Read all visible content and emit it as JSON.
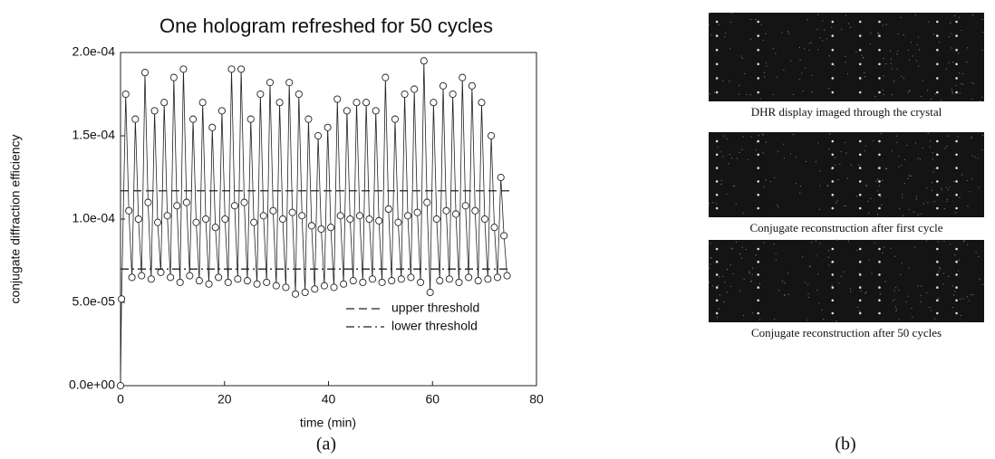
{
  "chart_data": {
    "type": "line",
    "title": "One hologram refreshed for 50 cycles",
    "xlabel": "time (min)",
    "ylabel": "conjugate diffraction efficiency",
    "xlim": [
      0,
      80
    ],
    "xticks": [
      0,
      20,
      40,
      60,
      80
    ],
    "ylim": [
      0,
      0.0002
    ],
    "yticks": [
      {
        "value": 0,
        "label": "0.0e+00"
      },
      {
        "value": 5e-05,
        "label": "5.0e-05"
      },
      {
        "value": 0.0001,
        "label": "1.0e-04"
      },
      {
        "value": 0.00015,
        "label": "1.5e-04"
      },
      {
        "value": 0.0002,
        "label": "2.0e-04"
      }
    ],
    "legend": "lower right",
    "series": [
      {
        "color": "#222",
        "marker": "circle",
        "x": [
          0,
          0.2,
          1.0,
          1.6,
          2.2,
          2.85,
          3.45,
          4.05,
          4.7,
          5.3,
          5.9,
          6.55,
          7.15,
          7.75,
          8.4,
          9.0,
          9.6,
          10.25,
          10.85,
          11.45,
          12.1,
          12.7,
          13.3,
          13.95,
          14.55,
          15.15,
          15.8,
          16.4,
          17.0,
          17.65,
          18.25,
          18.85,
          19.5,
          20.1,
          20.7,
          21.35,
          21.95,
          22.55,
          23.2,
          23.8,
          24.4,
          25.05,
          25.65,
          26.25,
          26.9,
          27.5,
          28.1,
          28.75,
          29.35,
          29.95,
          30.6,
          31.2,
          31.8,
          32.45,
          33.05,
          33.65,
          34.3,
          34.9,
          35.5,
          36.15,
          36.75,
          37.35,
          38.0,
          38.6,
          39.2,
          39.85,
          40.45,
          41.05,
          41.7,
          42.3,
          42.9,
          43.55,
          44.15,
          44.75,
          45.4,
          46.0,
          46.6,
          47.25,
          47.85,
          48.45,
          49.1,
          49.7,
          50.3,
          50.95,
          51.55,
          52.15,
          52.8,
          53.4,
          54.0,
          54.65,
          55.25,
          55.85,
          56.5,
          57.1,
          57.7,
          58.35,
          58.95,
          59.55,
          60.2,
          60.8,
          61.4,
          62.05,
          62.65,
          63.25,
          63.9,
          64.5,
          65.1,
          65.75,
          66.35,
          66.95,
          67.6,
          68.2,
          68.8,
          69.45,
          70.05,
          70.65,
          71.3,
          71.9,
          72.5,
          73.15,
          73.75,
          74.35
        ],
        "values": [
          0,
          5.2e-05,
          0.000175,
          0.000105,
          6.5e-05,
          0.00016,
          0.0001,
          6.6e-05,
          0.000188,
          0.00011,
          6.4e-05,
          0.000165,
          9.8e-05,
          6.8e-05,
          0.00017,
          0.000102,
          6.5e-05,
          0.000185,
          0.000108,
          6.2e-05,
          0.00019,
          0.00011,
          6.6e-05,
          0.00016,
          9.8e-05,
          6.3e-05,
          0.00017,
          0.0001,
          6.1e-05,
          0.000155,
          9.5e-05,
          6.5e-05,
          0.000165,
          0.0001,
          6.2e-05,
          0.00019,
          0.000108,
          6.4e-05,
          0.00019,
          0.00011,
          6.3e-05,
          0.00016,
          9.8e-05,
          6.1e-05,
          0.000175,
          0.000102,
          6.2e-05,
          0.000182,
          0.000105,
          6e-05,
          0.00017,
          0.0001,
          5.9e-05,
          0.000182,
          0.000104,
          5.5e-05,
          0.000175,
          0.000102,
          5.6e-05,
          0.00016,
          9.6e-05,
          5.8e-05,
          0.00015,
          9.4e-05,
          6e-05,
          0.000155,
          9.5e-05,
          5.9e-05,
          0.000172,
          0.000102,
          6.1e-05,
          0.000165,
          0.0001,
          6.3e-05,
          0.00017,
          0.000102,
          6.2e-05,
          0.00017,
          0.0001,
          6.4e-05,
          0.000165,
          9.9e-05,
          6.2e-05,
          0.000185,
          0.000106,
          6.3e-05,
          0.00016,
          9.8e-05,
          6.4e-05,
          0.000175,
          0.000102,
          6.5e-05,
          0.000178,
          0.000104,
          6.2e-05,
          0.000195,
          0.00011,
          5.6e-05,
          0.00017,
          0.0001,
          6.3e-05,
          0.00018,
          0.000105,
          6.4e-05,
          0.000175,
          0.000103,
          6.2e-05,
          0.000185,
          0.000108,
          6.5e-05,
          0.00018,
          0.000105,
          6.3e-05,
          0.00017,
          0.0001,
          6.4e-05,
          0.00015,
          9.5e-05,
          6.5e-05,
          0.000125,
          9e-05,
          6.6e-05
        ]
      },
      {
        "name": "upper threshold",
        "color": "#222",
        "dash": "9 5",
        "x": [
          0,
          75
        ],
        "values": [
          0.000117,
          0.000117
        ]
      },
      {
        "name": "lower threshold",
        "color": "#222",
        "dash": "9 4 2 4",
        "x": [
          0,
          75
        ],
        "values": [
          7e-05,
          7e-05
        ]
      }
    ]
  },
  "figure": {
    "panel_labels": [
      "(a)",
      "(b)"
    ],
    "images": [
      {
        "caption": "DHR display imaged through the crystal"
      },
      {
        "caption": "Conjugate reconstruction after first cycle"
      },
      {
        "caption": "Conjugate reconstruction after 50 cycles"
      }
    ]
  }
}
